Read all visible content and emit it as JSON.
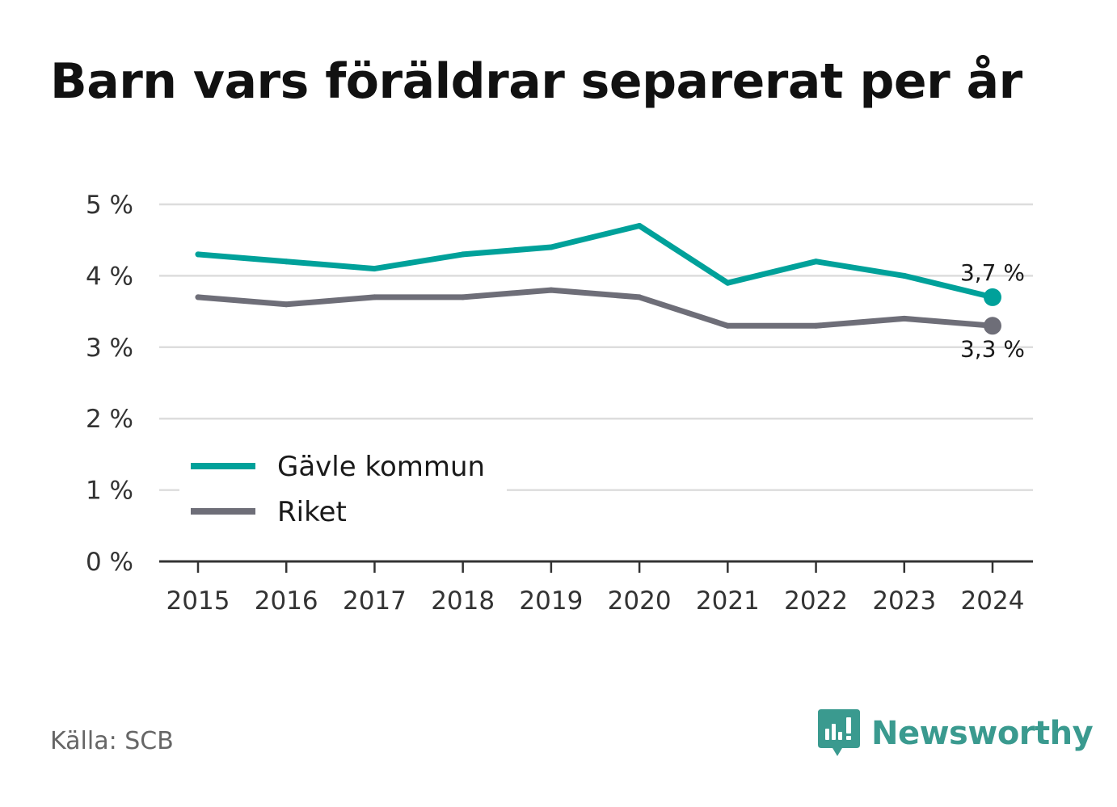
{
  "chart_data": {
    "type": "line",
    "title": "Barn vars föräldrar separerat per år",
    "x": [
      "2015",
      "2016",
      "2017",
      "2018",
      "2019",
      "2020",
      "2021",
      "2022",
      "2023",
      "2024"
    ],
    "series": [
      {
        "name": "Gävle kommun",
        "color": "#00a19a",
        "values": [
          4.3,
          4.2,
          4.1,
          4.3,
          4.4,
          4.7,
          3.9,
          4.2,
          4.0,
          3.7
        ],
        "end_label": "3,7 %"
      },
      {
        "name": "Riket",
        "color": "#6e6e78",
        "values": [
          3.7,
          3.6,
          3.7,
          3.7,
          3.8,
          3.7,
          3.3,
          3.3,
          3.4,
          3.3
        ],
        "end_label": "3,3 %"
      }
    ],
    "ylim": [
      0,
      5
    ],
    "y_ticks": [
      0,
      1,
      2,
      3,
      4,
      5
    ],
    "y_tick_labels": [
      "0 %",
      "1 %",
      "2 %",
      "3 %",
      "4 %",
      "5 %"
    ],
    "grid": true,
    "legend_position": "bottom-left"
  },
  "source": "Källa: SCB",
  "brand": {
    "name": "Newsworthy",
    "icon": "newsworthy-logo-icon",
    "color": "#3a9a8f"
  }
}
